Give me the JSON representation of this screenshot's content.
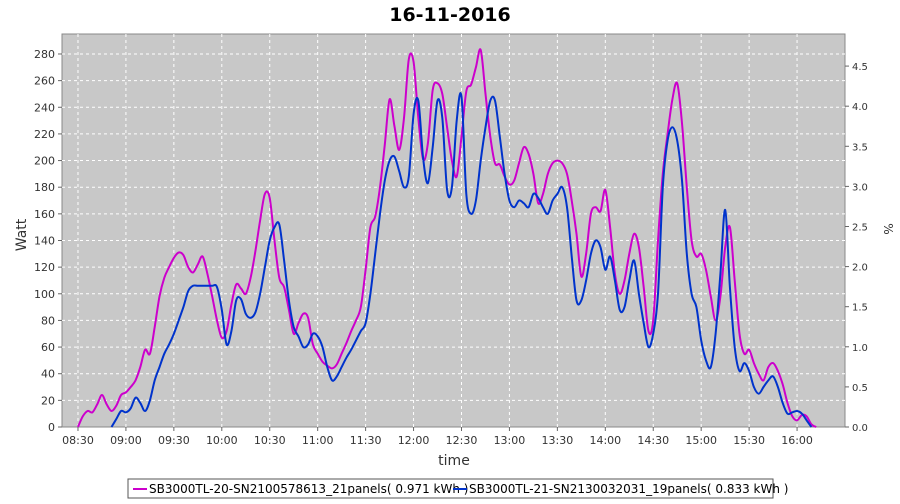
{
  "chart_data": {
    "type": "line",
    "title": "16-11-2016",
    "xlabel": "time",
    "ylabel": "Watt",
    "y2label": "%",
    "x_ticks": [
      "08:30",
      "09:00",
      "09:30",
      "10:00",
      "10:30",
      "11:00",
      "11:30",
      "12:00",
      "12:30",
      "13:00",
      "13:30",
      "14:00",
      "14:30",
      "15:00",
      "15:30",
      "16:00"
    ],
    "xlim_minutes": [
      500,
      990
    ],
    "ylim": [
      0,
      295
    ],
    "y_ticks": [
      0,
      20,
      40,
      60,
      80,
      100,
      120,
      140,
      160,
      180,
      200,
      220,
      240,
      260,
      280
    ],
    "y2lim": [
      0,
      4.9
    ],
    "y2_ticks": [
      "0.0",
      "0.5",
      "1.0",
      "1.5",
      "2.0",
      "2.5",
      "3.0",
      "3.5",
      "4.0",
      "4.5"
    ],
    "grid": true,
    "legend_position": "bottom",
    "series": [
      {
        "name": "SB3000TL-20-SN2100578613_21panels( 0.971 kWh )",
        "color": "#cc00cc",
        "x": [
          "08:30",
          "08:33",
          "08:36",
          "08:39",
          "08:42",
          "08:45",
          "08:48",
          "08:51",
          "08:54",
          "08:57",
          "09:00",
          "09:03",
          "09:06",
          "09:09",
          "09:12",
          "09:15",
          "09:18",
          "09:21",
          "09:24",
          "09:27",
          "09:30",
          "09:33",
          "09:36",
          "09:39",
          "09:42",
          "09:45",
          "09:48",
          "09:51",
          "09:54",
          "09:57",
          "10:00",
          "10:03",
          "10:06",
          "10:09",
          "10:12",
          "10:15",
          "10:18",
          "10:21",
          "10:24",
          "10:27",
          "10:30",
          "10:33",
          "10:36",
          "10:39",
          "10:42",
          "10:45",
          "10:48",
          "10:51",
          "10:54",
          "10:57",
          "11:00",
          "11:03",
          "11:06",
          "11:09",
          "11:12",
          "11:15",
          "11:18",
          "11:21",
          "11:24",
          "11:27",
          "11:30",
          "11:33",
          "11:36",
          "11:39",
          "11:42",
          "11:45",
          "11:48",
          "11:51",
          "11:54",
          "11:57",
          "12:00",
          "12:03",
          "12:06",
          "12:09",
          "12:12",
          "12:15",
          "12:18",
          "12:21",
          "12:24",
          "12:27",
          "12:30",
          "12:33",
          "12:36",
          "12:39",
          "12:42",
          "12:45",
          "12:48",
          "12:51",
          "12:54",
          "12:57",
          "13:00",
          "13:03",
          "13:06",
          "13:09",
          "13:12",
          "13:15",
          "13:18",
          "13:21",
          "13:24",
          "13:27",
          "13:30",
          "13:33",
          "13:36",
          "13:39",
          "13:42",
          "13:45",
          "13:48",
          "13:51",
          "13:54",
          "13:57",
          "14:00",
          "14:03",
          "14:06",
          "14:09",
          "14:12",
          "14:15",
          "14:18",
          "14:21",
          "14:24",
          "14:27",
          "14:30",
          "14:33",
          "14:36",
          "14:39",
          "14:42",
          "14:45",
          "14:48",
          "14:51",
          "14:54",
          "14:57",
          "15:00",
          "15:03",
          "15:06",
          "15:09",
          "15:12",
          "15:15",
          "15:18",
          "15:21",
          "15:24",
          "15:27",
          "15:30",
          "15:33",
          "15:36",
          "15:39",
          "15:42",
          "15:45",
          "15:48",
          "15:51",
          "15:54",
          "15:57",
          "16:00",
          "16:03",
          "16:06",
          "16:09",
          "16:12"
        ],
        "values": [
          0,
          8,
          12,
          11,
          17,
          24,
          17,
          12,
          16,
          24,
          26,
          30,
          35,
          45,
          58,
          55,
          75,
          98,
          112,
          120,
          127,
          131,
          129,
          120,
          116,
          122,
          128,
          115,
          98,
          80,
          67,
          72,
          92,
          107,
          104,
          100,
          112,
          132,
          155,
          175,
          172,
          140,
          112,
          105,
          88,
          70,
          78,
          85,
          82,
          62,
          55,
          49,
          46,
          44,
          47,
          55,
          63,
          72,
          80,
          90,
          118,
          150,
          158,
          180,
          212,
          246,
          226,
          208,
          232,
          276,
          274,
          232,
          201,
          213,
          253,
          258,
          250,
          225,
          200,
          188,
          218,
          252,
          257,
          270,
          283,
          250,
          218,
          198,
          197,
          188,
          182,
          185,
          198,
          210,
          205,
          190,
          168,
          175,
          190,
          198,
          200,
          198,
          190,
          170,
          145,
          113,
          130,
          160,
          165,
          162,
          178,
          150,
          115,
          100,
          110,
          130,
          145,
          135,
          105,
          72,
          80,
          140,
          190,
          220,
          246,
          258,
          228,
          180,
          140,
          128,
          130,
          118,
          98,
          80,
          98,
          135,
          150,
          110,
          70,
          55,
          58,
          48,
          40,
          35,
          45,
          48,
          42,
          32,
          18,
          8,
          5,
          9,
          8,
          2,
          0
        ]
      },
      {
        "name": "SB3000TL-21-SN2130032031_19panels( 0.833 kWh )",
        "color": "#0033cc",
        "x": [
          "08:30",
          "08:33",
          "08:36",
          "08:39",
          "08:42",
          "08:45",
          "08:48",
          "08:51",
          "08:54",
          "08:57",
          "09:00",
          "09:03",
          "09:06",
          "09:09",
          "09:12",
          "09:15",
          "09:18",
          "09:21",
          "09:24",
          "09:27",
          "09:30",
          "09:33",
          "09:36",
          "09:39",
          "09:42",
          "09:45",
          "09:48",
          "09:51",
          "09:54",
          "09:57",
          "10:00",
          "10:03",
          "10:06",
          "10:09",
          "10:12",
          "10:15",
          "10:18",
          "10:21",
          "10:24",
          "10:27",
          "10:30",
          "10:33",
          "10:36",
          "10:39",
          "10:42",
          "10:45",
          "10:48",
          "10:51",
          "10:54",
          "10:57",
          "11:00",
          "11:03",
          "11:06",
          "11:09",
          "11:12",
          "11:15",
          "11:18",
          "11:21",
          "11:24",
          "11:27",
          "11:30",
          "11:33",
          "11:36",
          "11:39",
          "11:42",
          "11:45",
          "11:48",
          "11:51",
          "11:54",
          "11:57",
          "12:00",
          "12:03",
          "12:06",
          "12:09",
          "12:12",
          "12:15",
          "12:18",
          "12:21",
          "12:24",
          "12:27",
          "12:30",
          "12:33",
          "12:36",
          "12:39",
          "12:42",
          "12:45",
          "12:48",
          "12:51",
          "12:54",
          "12:57",
          "13:00",
          "13:03",
          "13:06",
          "13:09",
          "13:12",
          "13:15",
          "13:18",
          "13:21",
          "13:24",
          "13:27",
          "13:30",
          "13:33",
          "13:36",
          "13:39",
          "13:42",
          "13:45",
          "13:48",
          "13:51",
          "13:54",
          "13:57",
          "14:00",
          "14:03",
          "14:06",
          "14:09",
          "14:12",
          "14:15",
          "14:18",
          "14:21",
          "14:24",
          "14:27",
          "14:30",
          "14:33",
          "14:36",
          "14:39",
          "14:42",
          "14:45",
          "14:48",
          "14:51",
          "14:54",
          "14:57",
          "15:00",
          "15:03",
          "15:06",
          "15:09",
          "15:12",
          "15:15",
          "15:18",
          "15:21",
          "15:24",
          "15:27",
          "15:30",
          "15:33",
          "15:36",
          "15:39",
          "15:42",
          "15:45",
          "15:48",
          "15:51",
          "15:54",
          "15:57",
          "16:00",
          "16:03",
          "16:06",
          "16:09",
          "16:12"
        ],
        "values": [
          null,
          null,
          null,
          null,
          null,
          null,
          null,
          0,
          6,
          12,
          11,
          14,
          22,
          18,
          12,
          20,
          35,
          45,
          55,
          62,
          70,
          80,
          90,
          102,
          106,
          106,
          106,
          106,
          106,
          105,
          88,
          62,
          72,
          95,
          96,
          85,
          82,
          86,
          100,
          120,
          140,
          150,
          152,
          125,
          95,
          75,
          68,
          60,
          62,
          70,
          68,
          60,
          45,
          35,
          38,
          45,
          52,
          58,
          65,
          72,
          78,
          100,
          130,
          160,
          185,
          200,
          203,
          192,
          180,
          188,
          235,
          245,
          202,
          183,
          210,
          245,
          232,
          178,
          180,
          230,
          248,
          175,
          160,
          170,
          200,
          225,
          245,
          245,
          218,
          190,
          170,
          165,
          170,
          168,
          165,
          175,
          172,
          165,
          160,
          170,
          175,
          180,
          165,
          128,
          95,
          95,
          110,
          130,
          140,
          135,
          118,
          128,
          110,
          88,
          90,
          110,
          125,
          100,
          78,
          60,
          70,
          100,
          180,
          215,
          225,
          215,
          185,
          130,
          100,
          90,
          65,
          50,
          45,
          70,
          115,
          163,
          105,
          60,
          42,
          48,
          42,
          30,
          25,
          30,
          35,
          38,
          30,
          18,
          10,
          11,
          12,
          10,
          5,
          0,
          null
        ]
      }
    ]
  }
}
